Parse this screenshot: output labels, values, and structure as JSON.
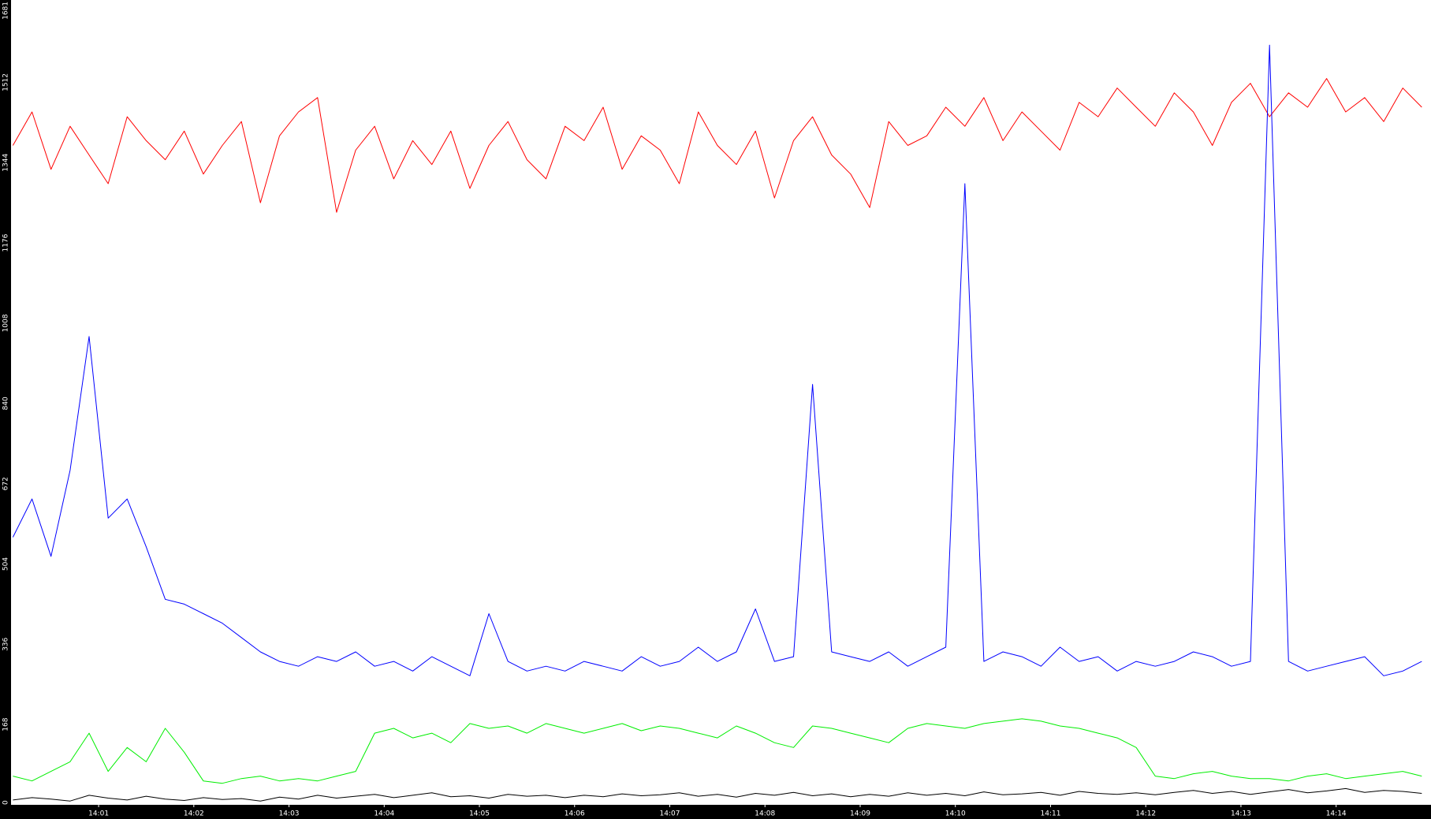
{
  "chart_data": {
    "type": "line",
    "x": [
      0.1,
      0.3,
      0.5,
      0.7,
      0.9,
      1.1,
      1.3,
      1.5,
      1.7,
      1.9,
      2.1,
      2.3,
      2.5,
      2.7,
      2.9,
      3.1,
      3.3,
      3.5,
      3.7,
      3.9,
      4.1,
      4.3,
      4.5,
      4.7,
      4.9,
      5.1,
      5.3,
      5.5,
      5.7,
      5.9,
      6.1,
      6.3,
      6.5,
      6.7,
      6.9,
      7.1,
      7.3,
      7.5,
      7.7,
      7.9,
      8.1,
      8.3,
      8.5,
      8.7,
      8.9,
      9.1,
      9.3,
      9.5,
      9.7,
      9.9,
      10.1,
      10.3,
      10.5,
      10.7,
      10.9,
      11.1,
      11.3,
      11.5,
      11.7,
      11.9,
      12.1,
      12.3,
      12.5,
      12.7,
      12.9,
      13.1,
      13.3,
      13.5,
      13.7,
      13.9,
      14.1,
      14.3,
      14.5,
      14.7,
      14.9
    ],
    "series": [
      {
        "color": "#ff0000",
        "values": [
          1380,
          1450,
          1330,
          1420,
          1360,
          1300,
          1440,
          1390,
          1350,
          1410,
          1320,
          1380,
          1430,
          1260,
          1400,
          1450,
          1480,
          1240,
          1370,
          1420,
          1310,
          1390,
          1340,
          1410,
          1290,
          1380,
          1430,
          1350,
          1310,
          1420,
          1390,
          1460,
          1330,
          1400,
          1370,
          1300,
          1450,
          1380,
          1340,
          1410,
          1270,
          1390,
          1440,
          1360,
          1320,
          1250,
          1430,
          1380,
          1400,
          1460,
          1420,
          1480,
          1390,
          1450,
          1410,
          1370,
          1470,
          1440,
          1500,
          1460,
          1420,
          1490,
          1450,
          1380,
          1470,
          1510,
          1440,
          1490,
          1460,
          1520,
          1450,
          1480,
          1430,
          1500,
          1460
        ]
      },
      {
        "color": "#0000ff",
        "values": [
          560,
          640,
          520,
          700,
          980,
          600,
          640,
          540,
          430,
          420,
          400,
          380,
          350,
          320,
          300,
          290,
          310,
          300,
          320,
          290,
          300,
          280,
          310,
          290,
          270,
          400,
          300,
          280,
          290,
          280,
          300,
          290,
          280,
          310,
          290,
          300,
          330,
          300,
          320,
          410,
          300,
          310,
          880,
          320,
          310,
          300,
          320,
          290,
          310,
          330,
          1300,
          300,
          320,
          310,
          290,
          330,
          300,
          310,
          280,
          300,
          290,
          300,
          320,
          310,
          290,
          300,
          1590,
          300,
          280,
          290,
          300,
          310,
          270,
          280,
          300
        ]
      },
      {
        "color": "#00ee00",
        "values": [
          60,
          50,
          70,
          90,
          150,
          70,
          120,
          90,
          160,
          110,
          50,
          45,
          55,
          60,
          50,
          55,
          50,
          60,
          70,
          150,
          160,
          140,
          150,
          130,
          170,
          160,
          165,
          150,
          170,
          160,
          150,
          160,
          170,
          155,
          165,
          160,
          150,
          140,
          165,
          150,
          130,
          120,
          165,
          160,
          150,
          140,
          130,
          160,
          170,
          165,
          160,
          170,
          175,
          180,
          175,
          165,
          160,
          150,
          140,
          120,
          60,
          55,
          65,
          70,
          60,
          55,
          55,
          50,
          60,
          65,
          55,
          60,
          65,
          70,
          60
        ]
      },
      {
        "color": "#000000",
        "values": [
          10,
          15,
          12,
          8,
          20,
          14,
          10,
          18,
          12,
          9,
          15,
          11,
          13,
          8,
          16,
          12,
          20,
          14,
          18,
          22,
          15,
          20,
          25,
          17,
          19,
          14,
          22,
          18,
          20,
          15,
          20,
          17,
          23,
          19,
          21,
          25,
          18,
          22,
          16,
          24,
          20,
          26,
          19,
          23,
          17,
          22,
          18,
          25,
          20,
          24,
          19,
          27,
          21,
          23,
          26,
          20,
          28,
          24,
          22,
          25,
          21,
          26,
          30,
          24,
          28,
          22,
          27,
          32,
          25,
          29,
          34,
          26,
          30,
          28,
          24
        ]
      }
    ],
    "xlim": [
      0.08,
      14.98
    ],
    "xticks": [
      {
        "value": 1,
        "label": "14:01"
      },
      {
        "value": 2,
        "label": "14:02"
      },
      {
        "value": 3,
        "label": "14:03"
      },
      {
        "value": 4,
        "label": "14:04"
      },
      {
        "value": 5,
        "label": "14:05"
      },
      {
        "value": 6,
        "label": "14:06"
      },
      {
        "value": 7,
        "label": "14:07"
      },
      {
        "value": 8,
        "label": "14:08"
      },
      {
        "value": 9,
        "label": "14:09"
      },
      {
        "value": 10,
        "label": "14:10"
      },
      {
        "value": 11,
        "label": "14:11"
      },
      {
        "value": 12,
        "label": "14:12"
      },
      {
        "value": 13,
        "label": "14:13"
      },
      {
        "value": 14,
        "label": "14:14"
      }
    ],
    "ylim": [
      0,
      1681
    ],
    "yticks": [
      0,
      168,
      336,
      504,
      672,
      840,
      1008,
      1176,
      1344,
      1512,
      1681
    ]
  }
}
